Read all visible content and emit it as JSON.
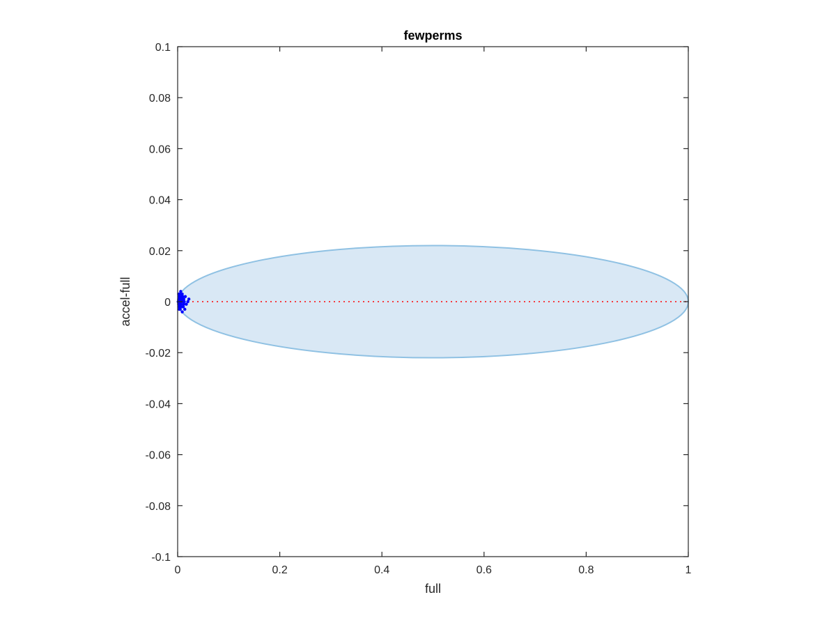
{
  "chart_data": {
    "type": "scatter",
    "title": "fewperms",
    "xlabel": "full",
    "ylabel": "accel-full",
    "xlim": [
      0,
      1
    ],
    "ylim": [
      -0.1,
      0.1
    ],
    "xticks": [
      0,
      0.2,
      0.4,
      0.6,
      0.8,
      1
    ],
    "xtick_labels": [
      "0",
      "0.2",
      "0.4",
      "0.6",
      "0.8",
      "1"
    ],
    "yticks": [
      -0.1,
      -0.08,
      -0.06,
      -0.04,
      -0.02,
      0,
      0.02,
      0.04,
      0.06,
      0.08,
      0.1
    ],
    "ytick_labels": [
      "-0.1",
      "-0.08",
      "-0.06",
      "-0.04",
      "-0.02",
      "0",
      "0.02",
      "0.04",
      "0.06",
      "0.08",
      "0.1"
    ],
    "grid": false,
    "ellipse": {
      "x_range": [
        0,
        1
      ],
      "y_halfwidth": 0.022,
      "fill_color": "#d9e8f5",
      "edge_color": "#8fc1e3"
    },
    "reference_line": {
      "y": 0,
      "x_range": [
        0,
        1
      ],
      "style": "dotted",
      "color": "#ff0000"
    },
    "series": [
      {
        "color": "#0000ff",
        "points": [
          [
            0.001,
            0.0
          ],
          [
            0.002,
            0.001
          ],
          [
            0.002,
            -0.001
          ],
          [
            0.003,
            0.002
          ],
          [
            0.003,
            -0.002
          ],
          [
            0.004,
            0.0
          ],
          [
            0.004,
            0.003
          ],
          [
            0.005,
            -0.003
          ],
          [
            0.005,
            0.001
          ],
          [
            0.006,
            0.004
          ],
          [
            0.006,
            -0.001
          ],
          [
            0.007,
            0.0
          ],
          [
            0.007,
            0.002
          ],
          [
            0.008,
            -0.002
          ],
          [
            0.008,
            0.001
          ],
          [
            0.009,
            -0.004
          ],
          [
            0.009,
            0.003
          ],
          [
            0.01,
            0.0
          ],
          [
            0.011,
            -0.001
          ],
          [
            0.012,
            0.001
          ],
          [
            0.013,
            0.0
          ],
          [
            0.014,
            -0.003
          ],
          [
            0.015,
            0.002
          ],
          [
            0.017,
            -0.001
          ],
          [
            0.02,
            0.0
          ],
          [
            0.022,
            0.001
          ],
          [
            0.003,
            0.0
          ],
          [
            0.004,
            -0.002
          ],
          [
            0.005,
            0.002
          ],
          [
            0.006,
            0.0
          ],
          [
            0.002,
            0.003
          ],
          [
            0.003,
            -0.003
          ],
          [
            0.01,
            0.002
          ],
          [
            0.011,
            -0.002
          ],
          [
            0.012,
            -0.001
          ]
        ]
      }
    ]
  }
}
